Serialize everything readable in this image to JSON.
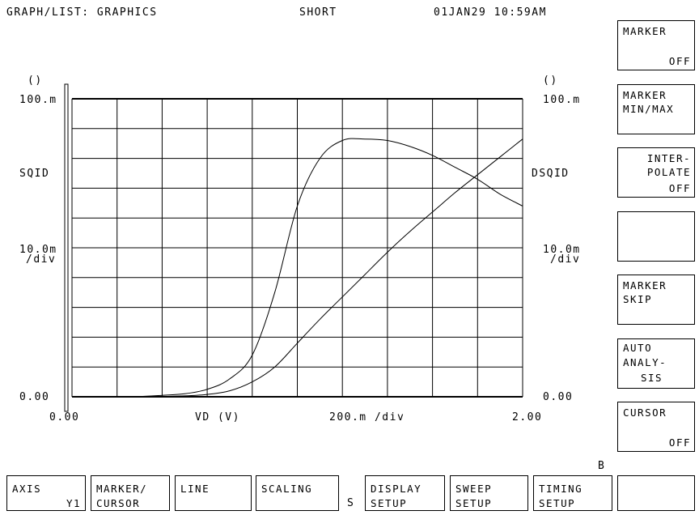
{
  "header": {
    "title": "GRAPH/LIST: GRAPHICS",
    "mode": "SHORT",
    "datetime": "01JAN29 10:59AM"
  },
  "chart_data": {
    "type": "line",
    "x": [
      0,
      0.1,
      0.2,
      0.3,
      0.4,
      0.5,
      0.6,
      0.7,
      0.8,
      0.9,
      1.0,
      1.1,
      1.2,
      1.3,
      1.4,
      1.5,
      1.6,
      1.7,
      1.8,
      1.9,
      2.0
    ],
    "series": [
      {
        "name": "SQID",
        "values": [
          0,
          0,
          0,
          0.0001,
          0.0005,
          0.001,
          0.0025,
          0.006,
          0.014,
          0.035,
          0.064,
          0.08,
          0.086,
          0.0865,
          0.086,
          0.084,
          0.081,
          0.077,
          0.073,
          0.068,
          0.064
        ]
      },
      {
        "name": "DSQID",
        "values": [
          0,
          0,
          0,
          0,
          0.0001,
          0.0003,
          0.0008,
          0.002,
          0.005,
          0.01,
          0.018,
          0.026,
          0.0335,
          0.041,
          0.0485,
          0.0555,
          0.062,
          0.0685,
          0.0745,
          0.0805,
          0.0865
        ]
      }
    ],
    "xlim": [
      0,
      2.0
    ],
    "ylim": [
      0,
      0.1
    ],
    "xlabel": "VD (V)",
    "x_scale": "200.m /div",
    "x_ticks": [
      "0.00",
      "2.00"
    ],
    "left_axis": {
      "unit": "()",
      "max": "100.m",
      "label": "SQID",
      "scale_top": "10.0m",
      "scale_bottom": "/div",
      "min": "0.00"
    },
    "right_axis": {
      "unit": "()",
      "max": "100.m",
      "label": "DSQID",
      "scale_top": "10.0m",
      "scale_bottom": "/div",
      "min": "0.00"
    },
    "grid": true
  },
  "side_softkeys": [
    {
      "line1": "MARKER",
      "line2": "",
      "line3": "OFF"
    },
    {
      "line1": "MARKER",
      "line2": "MIN/MAX",
      "line3": ""
    },
    {
      "line1": "INTER-",
      "line2": "POLATE",
      "line3": "OFF"
    },
    {
      "line1": "",
      "line2": "",
      "line3": ""
    },
    {
      "line1": "MARKER",
      "line2": "SKIP",
      "line3": ""
    },
    {
      "line1": "AUTO",
      "line2": "ANALY-",
      "line3": "SIS"
    },
    {
      "line1": "CURSOR",
      "line2": "",
      "line3": "OFF"
    }
  ],
  "bottom_softkeys": [
    {
      "line1": "AXIS",
      "line2": "Y1"
    },
    {
      "line1": "MARKER/",
      "line2": "CURSOR"
    },
    {
      "line1": "LINE",
      "line2": ""
    },
    {
      "line1": "SCALING",
      "line2": ""
    },
    {
      "line1": "DISPLAY",
      "line2": "SETUP"
    },
    {
      "line1": "SWEEP",
      "line2": "SETUP"
    },
    {
      "line1": "TIMING",
      "line2": "SETUP"
    },
    {
      "line1": "",
      "line2": ""
    }
  ],
  "indicators": {
    "s": "S",
    "b": "B"
  }
}
